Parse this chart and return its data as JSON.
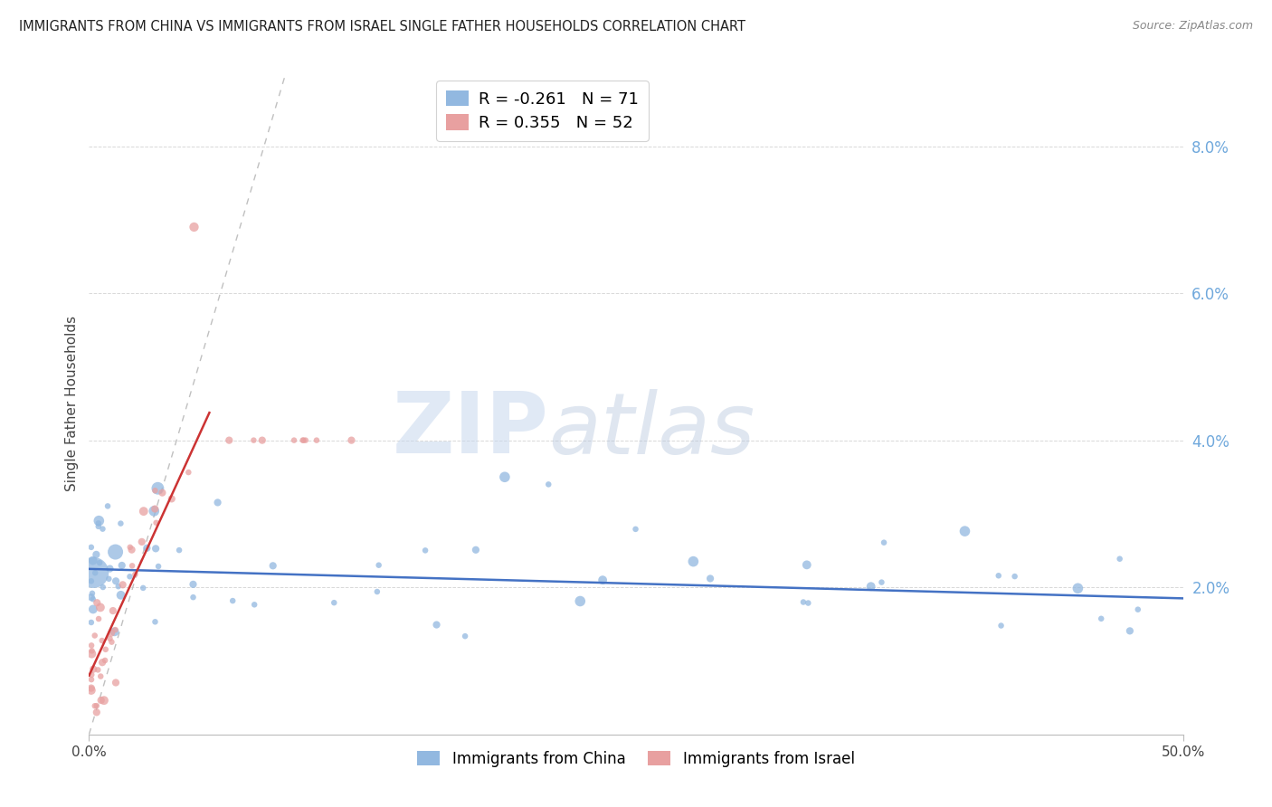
{
  "title": "IMMIGRANTS FROM CHINA VS IMMIGRANTS FROM ISRAEL SINGLE FATHER HOUSEHOLDS CORRELATION CHART",
  "source": "Source: ZipAtlas.com",
  "ylabel": "Single Father Households",
  "xlim": [
    0.0,
    0.5
  ],
  "ylim": [
    0.0,
    0.09
  ],
  "legend_blue_r": "-0.261",
  "legend_blue_n": "71",
  "legend_pink_r": "0.355",
  "legend_pink_n": "52",
  "color_blue": "#92b8e0",
  "color_pink": "#e8a0a0",
  "color_blue_line": "#4472c4",
  "color_pink_line": "#cc3333",
  "color_diag_line": "#c0c0c0",
  "color_right_axis": "#6fa8dc",
  "color_grid": "#d8d8d8",
  "watermark_zip": "ZIP",
  "watermark_atlas": "atlas",
  "xtick_positions": [
    0.0,
    0.5
  ],
  "xtick_labels": [
    "0.0%",
    "50.0%"
  ],
  "ytick_positions": [
    0.02,
    0.04,
    0.06,
    0.08
  ],
  "ytick_labels": [
    "2.0%",
    "4.0%",
    "6.0%",
    "8.0%"
  ],
  "legend_bottom_labels": [
    "Immigrants from China",
    "Immigrants from Israel"
  ],
  "blue_intercept": 0.0225,
  "blue_slope": -0.008,
  "pink_intercept": 0.008,
  "pink_slope": 0.65,
  "pink_line_xmax": 0.055
}
